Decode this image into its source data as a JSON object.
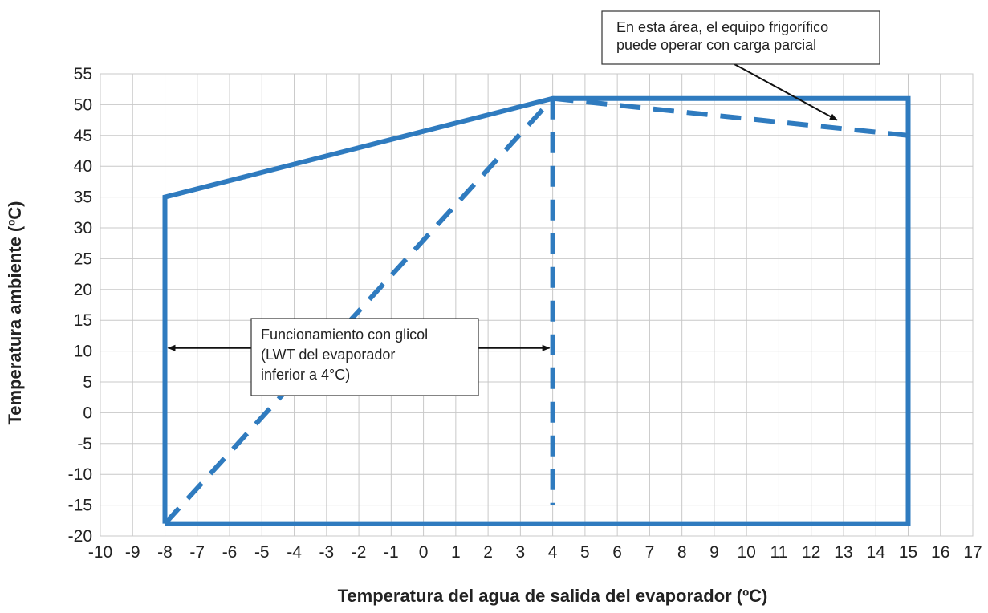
{
  "chart_data": {
    "type": "line",
    "xlabel": "Temperatura del agua de salida del evaporador (ºC)",
    "ylabel": "Temperatura ambiente (ºC)",
    "xlim": [
      -10,
      17
    ],
    "ylim": [
      -20,
      55
    ],
    "x_ticks": [
      -10,
      -9,
      -8,
      -7,
      -6,
      -5,
      -4,
      -3,
      -2,
      -1,
      0,
      1,
      2,
      3,
      4,
      5,
      6,
      7,
      8,
      9,
      10,
      11,
      12,
      13,
      14,
      15,
      16,
      17
    ],
    "y_ticks": [
      55,
      50,
      45,
      40,
      35,
      30,
      25,
      20,
      15,
      10,
      5,
      0,
      -5,
      -10,
      -15,
      -20
    ],
    "grid": true,
    "colors": {
      "series": "#2f7bbf",
      "grid": "#c8c8c8",
      "arrow": "#111111"
    },
    "series": [
      {
        "style": "solid",
        "points": [
          [
            -8,
            -18
          ],
          [
            -8,
            35
          ],
          [
            4,
            51
          ],
          [
            15,
            51
          ],
          [
            15,
            -18
          ],
          [
            -8,
            -18
          ]
        ]
      },
      {
        "style": "dashed",
        "points": [
          [
            -8,
            -18
          ],
          [
            4,
            51
          ]
        ]
      },
      {
        "style": "dashed",
        "points": [
          [
            4,
            51
          ],
          [
            4,
            -15
          ]
        ]
      },
      {
        "style": "dashed",
        "points": [
          [
            4,
            51
          ],
          [
            15,
            45
          ]
        ]
      }
    ],
    "annotations": [
      {
        "lines": [
          "Funcionamiento con glicol",
          "(LWT  del  evaporador",
          "inferior a 4°C)"
        ],
        "arrows": [
          {
            "to": [
              -8,
              10.5
            ]
          },
          {
            "to": [
              4,
              10.5
            ]
          }
        ]
      },
      {
        "lines": [
          "En esta área, el equipo frigorífico",
          "puede operar con carga parcial"
        ],
        "arrows": [
          {
            "to": [
              12.8,
              47.5
            ]
          }
        ]
      }
    ]
  }
}
